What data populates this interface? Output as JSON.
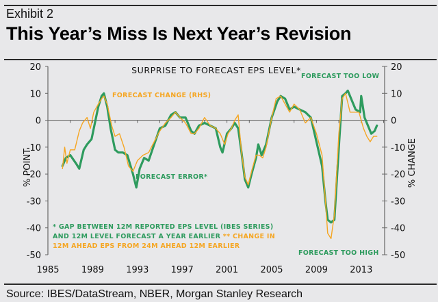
{
  "header": {
    "exhibit": "Exhibit 2",
    "title": "This Year’s Miss Is Next Year’s Revision"
  },
  "footer": {
    "source": "Source: IBES/DataStream, NBER, Morgan Stanley Research"
  },
  "colors": {
    "forecast_error": "#2e9b5e",
    "forecast_change": "#f5a623",
    "axis": "#666666",
    "background": "#e8e8ea"
  },
  "chart_data": {
    "type": "line",
    "title": "SURPRISE TO FORECAST EPS LEVEL*",
    "xlabel": "",
    "ylabel": "% POINT",
    "y2label": "% CHANGE",
    "xlim": [
      1985,
      2015
    ],
    "ylim": [
      -50,
      20
    ],
    "y2lim": [
      -50,
      20
    ],
    "x_ticks": [
      "1985",
      "1989",
      "1993",
      "1997",
      "2001",
      "2005",
      "2009",
      "2013"
    ],
    "y_ticks": [
      "20",
      "10",
      "0",
      "-10",
      "-20",
      "-30",
      "-40",
      "-50"
    ],
    "y2_ticks": [
      "20",
      "10",
      "0",
      "-10",
      "-20",
      "-30",
      "-40",
      "-50"
    ],
    "grid": false,
    "annotations": {
      "forecast_change_label": "FORECAST CHANGE (RHS)",
      "forecast_error_label": "FORECAST ERROR*",
      "too_low": "FORECAST TOO LOW",
      "too_high": "FORECAST TOO HIGH",
      "note_line1": "* GAP BETWEEN 12M REPORTED EPS LEVEL (IBES SERIES)",
      "note_line2_green": "AND 12M LEVEL FORECAST A YEAR EARLIER",
      "note_line2_orange": " ** CHANGE IN",
      "note_line3": "12M AHEAD EPS FROM 24M AHEAD 12M EARLIER"
    },
    "series": [
      {
        "name": "Forecast error (LHS)",
        "axis": "left",
        "x": [
          1986.3,
          1986.6,
          1987.0,
          1987.5,
          1987.8,
          1988.2,
          1988.5,
          1988.9,
          1989.2,
          1989.5,
          1989.8,
          1990.0,
          1990.3,
          1990.6,
          1991.0,
          1991.3,
          1991.7,
          1992.1,
          1992.6,
          1992.9,
          1993.2,
          1993.6,
          1994.0,
          1994.5,
          1995.0,
          1995.5,
          1996.0,
          1996.4,
          1996.8,
          1997.3,
          1997.8,
          1998.1,
          1998.5,
          1999.0,
          1999.5,
          2000.0,
          2000.4,
          2000.6,
          2001.0,
          2001.4,
          2001.7,
          2002.0,
          2002.3,
          2002.6,
          2002.9,
          2003.2,
          2003.6,
          2003.8,
          2004.1,
          2004.5,
          2005.0,
          2005.5,
          2005.8,
          2006.2,
          2006.6,
          2007.0,
          2007.5,
          2008.0,
          2008.5,
          2009.0,
          2009.5,
          2009.8,
          2010.0,
          2010.3,
          2010.6,
          2011.0,
          2011.3,
          2011.6,
          2011.8,
          2012.2,
          2012.5,
          2012.9,
          2013.0,
          2013.3,
          2013.6,
          2013.9,
          2014.2,
          2014.4
        ],
        "values": [
          -17,
          -14,
          -13,
          -16,
          -18,
          -11,
          -9,
          -7,
          -1,
          5,
          9,
          10,
          5,
          -3,
          -11,
          -12,
          -12,
          -13,
          -20,
          -25,
          -18,
          -14,
          -15,
          -9,
          -3,
          -2,
          2,
          3,
          1,
          1,
          -4,
          -5,
          -2,
          -1,
          -2,
          -3,
          -10,
          -12,
          -5,
          -3,
          -1,
          -3,
          -12,
          -22,
          -25,
          -20,
          -14,
          -9,
          -13,
          -9,
          1,
          7,
          9,
          8,
          4,
          5,
          4,
          3,
          1,
          -8,
          -17,
          -30,
          -37,
          -38,
          -37,
          -10,
          9,
          10,
          11,
          7,
          4,
          3,
          9,
          1,
          -2,
          -5,
          -4,
          -2
        ]
      },
      {
        "name": "Forecast change (RHS)",
        "axis": "right",
        "x": [
          1986.3,
          1986.5,
          1986.7,
          1987.0,
          1987.4,
          1987.8,
          1988.1,
          1988.5,
          1988.8,
          1989.1,
          1989.5,
          1989.8,
          1990.0,
          1990.3,
          1990.7,
          1991.0,
          1991.4,
          1991.8,
          1992.2,
          1992.6,
          1993.0,
          1993.5,
          1994.0,
          1994.5,
          1995.0,
          1995.5,
          1996.0,
          1996.4,
          1996.8,
          1997.3,
          1997.8,
          1998.1,
          1998.5,
          1999.0,
          1999.5,
          2000.0,
          2000.4,
          2000.8,
          2001.1,
          2001.4,
          2001.7,
          2002.0,
          2002.3,
          2002.6,
          2002.9,
          2003.2,
          2003.6,
          2003.9,
          2004.2,
          2004.5,
          2005.0,
          2005.4,
          2005.8,
          2006.2,
          2006.6,
          2007.0,
          2007.5,
          2008.0,
          2008.5,
          2009.0,
          2009.5,
          2009.8,
          2010.0,
          2010.3,
          2010.6,
          2011.0,
          2011.3,
          2011.6,
          2012.0,
          2012.4,
          2012.8,
          2013.2,
          2013.5,
          2013.8,
          2014.1,
          2014.4
        ],
        "values": [
          -18,
          -10,
          -16,
          -11,
          -11,
          -4,
          -1,
          1,
          -3,
          3,
          6,
          8,
          9,
          6,
          -2,
          -6,
          -5,
          -10,
          -17,
          -19,
          -15,
          -13,
          -12,
          -8,
          -4,
          -1,
          1,
          3,
          1,
          -1,
          -5,
          -5,
          -3,
          1,
          -2,
          -3,
          -5,
          -9,
          -5,
          -3,
          0,
          2,
          -12,
          -21,
          -24,
          -19,
          -13,
          -13,
          -14,
          -10,
          1,
          8,
          9,
          6,
          3,
          6,
          4,
          -1,
          1,
          -5,
          -13,
          -30,
          -42,
          -44,
          -35,
          -5,
          8,
          10,
          3,
          3,
          3,
          -3,
          -6,
          -8,
          -6,
          -6
        ]
      }
    ]
  }
}
